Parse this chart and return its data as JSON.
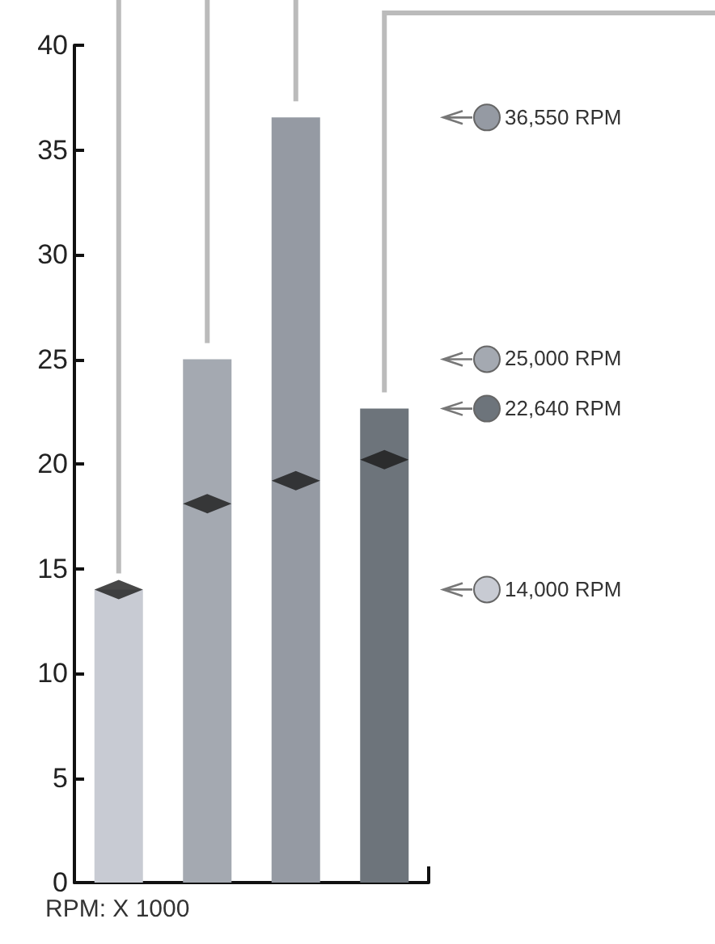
{
  "chart_data": {
    "type": "bar",
    "categories": [
      null,
      null,
      null,
      null
    ],
    "series": [
      {
        "colors": [
          "#c8cbd3",
          "#a4a9b1",
          "#959aa3",
          "#6d747b"
        ],
        "values": [
          14.0,
          25.0,
          36.55,
          22.64
        ]
      },
      {
        "type": "scatter",
        "color": "#1a1a1a",
        "marker": "diamond",
        "values": [
          14.0,
          18.1,
          19.2,
          20.2
        ]
      }
    ],
    "ylabel": "RPM: X 1000",
    "ylim": [
      0,
      40
    ],
    "yticks": [
      0,
      5,
      10,
      15,
      20,
      25,
      30,
      35,
      40
    ],
    "annotations": [
      "36,550 RPM",
      "25,000 RPM",
      "22,640 RPM",
      "14,000 RPM"
    ]
  }
}
